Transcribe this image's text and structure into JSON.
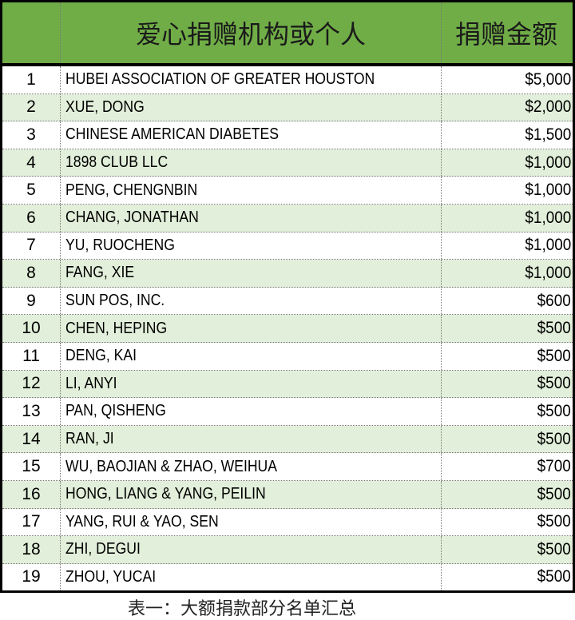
{
  "table": {
    "headers": [
      "",
      "爱心捐赠机构或个人",
      "捐赠金额"
    ],
    "rows": [
      {
        "no": "1",
        "name": "HUBEI ASSOCIATION OF GREATER HOUSTON",
        "amount": "$5,000"
      },
      {
        "no": "2",
        "name": "XUE, DONG",
        "amount": "$2,000"
      },
      {
        "no": "3",
        "name": "CHINESE AMERICAN DIABETES",
        "amount": "$1,500"
      },
      {
        "no": "4",
        "name": "1898 CLUB LLC",
        "amount": "$1,000"
      },
      {
        "no": "5",
        "name": "PENG, CHENGNBIN",
        "amount": "$1,000"
      },
      {
        "no": "6",
        "name": "CHANG, JONATHAN",
        "amount": "$1,000"
      },
      {
        "no": "7",
        "name": "YU, RUOCHENG",
        "amount": "$1,000"
      },
      {
        "no": "8",
        "name": "FANG, XIE",
        "amount": "$1,000"
      },
      {
        "no": "9",
        "name": "SUN POS, INC.",
        "amount": "$600"
      },
      {
        "no": "10",
        "name": "CHEN, HEPING",
        "amount": "$500"
      },
      {
        "no": "11",
        "name": "DENG, KAI",
        "amount": "$500"
      },
      {
        "no": "12",
        "name": "LI, ANYI",
        "amount": "$500"
      },
      {
        "no": "13",
        "name": "PAN, QISHENG",
        "amount": "$500"
      },
      {
        "no": "14",
        "name": "RAN, JI",
        "amount": "$500"
      },
      {
        "no": "15",
        "name": "WU, BAOJIAN & ZHAO, WEIHUA",
        "amount": "$700"
      },
      {
        "no": "16",
        "name": "HONG, LIANG & YANG, PEILIN",
        "amount": "$500"
      },
      {
        "no": "17",
        "name": "YANG, RUI &  YAO, SEN",
        "amount": "$500"
      },
      {
        "no": "18",
        "name": "ZHI, DEGUI",
        "amount": "$500"
      },
      {
        "no": "19",
        "name": "ZHOU, YUCAI",
        "amount": "$500"
      }
    ]
  },
  "caption": "表一：大额捐款部分名单汇总",
  "colors": {
    "header": "#70ad47",
    "alt_row": "#e2efda",
    "border": "#000000"
  }
}
